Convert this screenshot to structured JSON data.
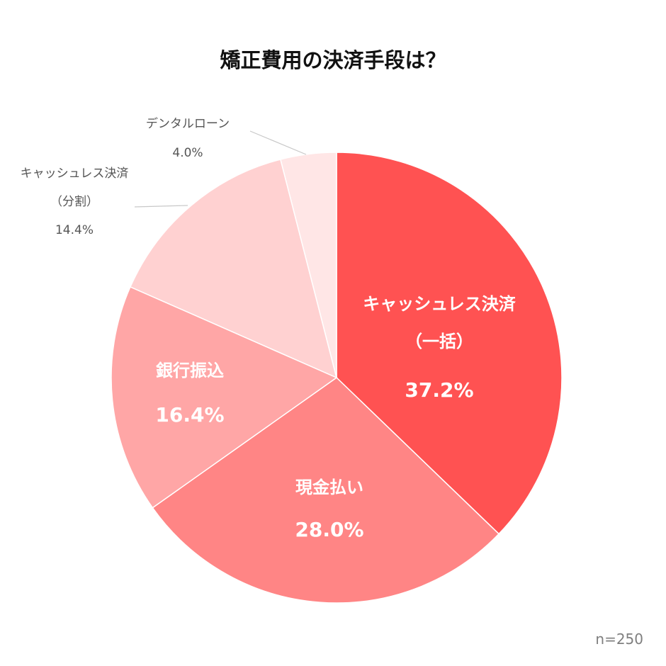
{
  "chart_data": {
    "type": "pie",
    "title": "矯正費用の決済手段は？",
    "sample_size": "n=250",
    "slices": [
      {
        "label_lines": [
          "キャッシュレス決済",
          "（一括）"
        ],
        "value": 37.2,
        "value_label": "37.2%",
        "color": "#ff5252",
        "label_position": "inside"
      },
      {
        "label_lines": [
          "現金払い"
        ],
        "value": 28.0,
        "value_label": "28.0%",
        "color": "#ff8585",
        "label_position": "inside"
      },
      {
        "label_lines": [
          "銀行振込"
        ],
        "value": 16.4,
        "value_label": "16.4%",
        "color": "#ffa6a6",
        "label_position": "inside"
      },
      {
        "label_lines": [
          "キャッシュレス決済",
          "（分割）"
        ],
        "value": 14.4,
        "value_label": "14.4%",
        "color": "#ffd1d1",
        "label_position": "outside"
      },
      {
        "label_lines": [
          "デンタルローン"
        ],
        "value": 4.0,
        "value_label": "4.0%",
        "color": "#ffe6e6",
        "label_position": "outside"
      }
    ]
  }
}
